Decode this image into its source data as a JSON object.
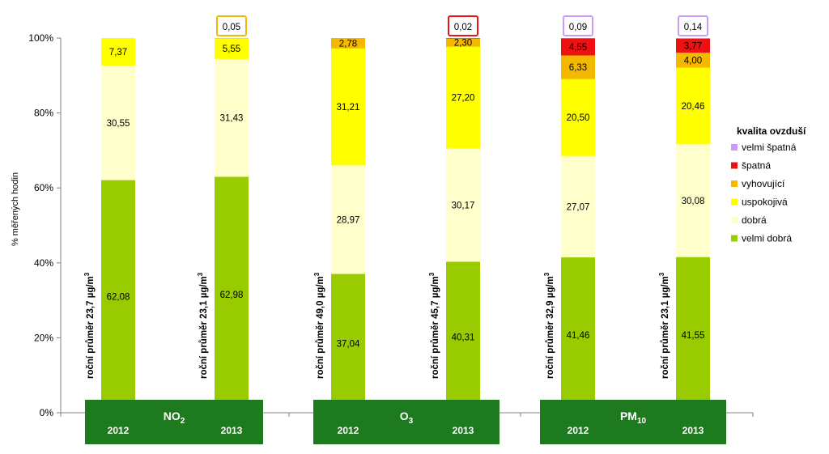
{
  "chart_data": {
    "type": "bar",
    "stacked": true,
    "title": "",
    "ylabel": "% měřených hodin",
    "ylim": [
      0,
      100
    ],
    "y_ticks": [
      "0%",
      "20%",
      "40%",
      "60%",
      "80%",
      "100%"
    ],
    "grid": false,
    "legend": {
      "title": "kvalita ovzduší",
      "position": "right",
      "entries": [
        {
          "name": "velmi špatná",
          "color": "#cc99ff"
        },
        {
          "name": "špatná",
          "color": "#ee1111"
        },
        {
          "name": "vyhovující",
          "color": "#f5b800"
        },
        {
          "name": "uspokojivá",
          "color": "#ffff00"
        },
        {
          "name": "dobrá",
          "color": "#ffffcc"
        },
        {
          "name": "velmi dobrá",
          "color": "#99cc00"
        }
      ]
    },
    "groups": [
      {
        "pollutant": "NO",
        "pollutant_sub": "2",
        "bars": [
          {
            "year": "2012",
            "annotation": "roční průměr 23,7  µg/m",
            "annotation_sup": "3",
            "values": {
              "velmi dobrá": 62.08,
              "dobrá": 30.55,
              "uspokojivá": 7.37,
              "vyhovující": 0,
              "špatná": 0,
              "velmi špatná": 0
            },
            "labels": {
              "velmi dobrá": "62,08",
              "dobrá": "30,55",
              "uspokojivá": "7,37"
            },
            "boxed_label": ""
          },
          {
            "year": "2013",
            "annotation": "roční průměr 23,1  µg/m",
            "annotation_sup": "3",
            "values": {
              "velmi dobrá": 62.98,
              "dobrá": 31.43,
              "uspokojivá": 5.55,
              "vyhovující": 0.05,
              "špatná": 0,
              "velmi špatná": 0
            },
            "labels": {
              "velmi dobrá": "62,98",
              "dobrá": "31,43",
              "uspokojivá": "5,55"
            },
            "boxed_label": "0,05",
            "boxed_color": "#f5b800"
          }
        ]
      },
      {
        "pollutant": "O",
        "pollutant_sub": "3",
        "bars": [
          {
            "year": "2012",
            "annotation": "roční průměr 49,0  µg/m",
            "annotation_sup": "3",
            "values": {
              "velmi dobrá": 37.04,
              "dobrá": 28.97,
              "uspokojivá": 31.21,
              "vyhovující": 2.78,
              "špatná": 0,
              "velmi špatná": 0
            },
            "labels": {
              "velmi dobrá": "37,04",
              "dobrá": "28,97",
              "uspokojivá": "31,21",
              "vyhovující": "2,78"
            },
            "boxed_label": ""
          },
          {
            "year": "2013",
            "annotation": "roční průměr 45,7  µg/m",
            "annotation_sup": "3",
            "values": {
              "velmi dobrá": 40.31,
              "dobrá": 30.17,
              "uspokojivá": 27.2,
              "vyhovující": 2.3,
              "špatná": 0.02,
              "velmi špatná": 0
            },
            "labels": {
              "velmi dobrá": "40,31",
              "dobrá": "30,17",
              "uspokojivá": "27,20",
              "vyhovující": "2,30"
            },
            "boxed_label": "0,02",
            "boxed_color": "#ee1111"
          }
        ]
      },
      {
        "pollutant": "PM",
        "pollutant_sub": "10",
        "bars": [
          {
            "year": "2012",
            "annotation": "roční průměr 32,9  µg/m",
            "annotation_sup": "3",
            "values": {
              "velmi dobrá": 41.46,
              "dobrá": 27.07,
              "uspokojivá": 20.5,
              "vyhovující": 6.33,
              "špatná": 4.55,
              "velmi špatná": 0.09
            },
            "labels": {
              "velmi dobrá": "41,46",
              "dobrá": "27,07",
              "uspokojivá": "20,50",
              "vyhovující": "6,33",
              "špatná": "4,55"
            },
            "boxed_label": "0,09",
            "boxed_color": "#cc99ff"
          },
          {
            "year": "2013",
            "annotation": "roční průměr 23,1  µg/m",
            "annotation_sup": "3",
            "values": {
              "velmi dobrá": 41.55,
              "dobrá": 30.08,
              "uspokojivá": 20.46,
              "vyhovující": 4.0,
              "špatná": 3.77,
              "velmi špatná": 0.14
            },
            "labels": {
              "velmi dobrá": "41,55",
              "dobrá": "30,08",
              "uspokojivá": "20,46",
              "vyhovující": "4,00",
              "špatná": "3,77"
            },
            "boxed_label": "0,14",
            "boxed_color": "#cc99ff"
          }
        ]
      }
    ],
    "group_box_color": "#1e7a1e",
    "group_text_color": "#ffffff"
  }
}
